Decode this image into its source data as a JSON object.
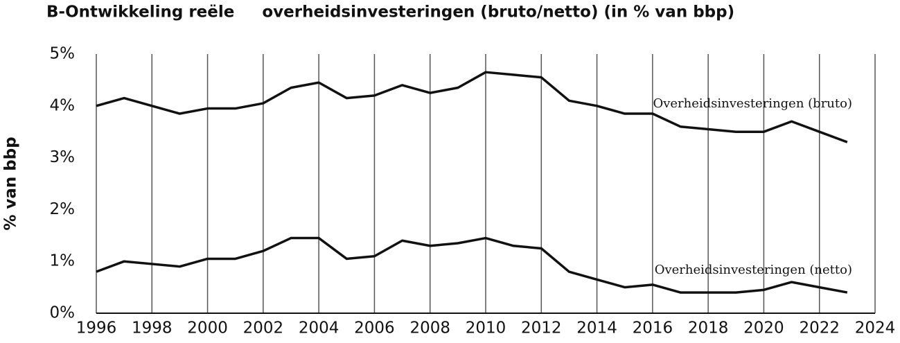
{
  "chart_data": {
    "type": "line",
    "title": "B-Ontwikkeling reële     overheidsinvesteringen (bruto/netto) (in % van bbp)",
    "y_label": "% van bbp",
    "x": [
      1996,
      1997,
      1998,
      1999,
      2000,
      2001,
      2002,
      2003,
      2004,
      2005,
      2006,
      2007,
      2008,
      2009,
      2010,
      2011,
      2012,
      2013,
      2014,
      2015,
      2016,
      2017,
      2018,
      2019,
      2020,
      2021,
      2022,
      2023
    ],
    "series": [
      {
        "name": "Overheidsinvesteringen (bruto)",
        "color": "#111111",
        "values": [
          4.0,
          4.15,
          4.0,
          3.85,
          3.95,
          3.95,
          4.05,
          4.35,
          4.45,
          4.15,
          4.2,
          4.4,
          4.25,
          4.35,
          4.65,
          4.6,
          4.55,
          4.1,
          4.0,
          3.85,
          3.85,
          3.6,
          3.55,
          3.5,
          3.5,
          3.7,
          3.5,
          3.3
        ]
      },
      {
        "name": "Overheidsinvesteringen (netto)",
        "color": "#111111",
        "values": [
          0.8,
          1.0,
          0.95,
          0.9,
          1.05,
          1.05,
          1.2,
          1.45,
          1.45,
          1.05,
          1.1,
          1.4,
          1.3,
          1.35,
          1.45,
          1.3,
          1.25,
          0.8,
          0.65,
          0.5,
          0.55,
          0.4,
          0.4,
          0.4,
          0.45,
          0.6,
          0.5,
          0.4
        ]
      }
    ],
    "xlim": [
      1996,
      2024
    ],
    "xticks": [
      1996,
      1998,
      2000,
      2002,
      2004,
      2006,
      2008,
      2010,
      2012,
      2014,
      2016,
      2018,
      2020,
      2022,
      2024
    ],
    "ylim": [
      0,
      5
    ],
    "yticks": [
      {
        "value": 0,
        "label": "0%"
      },
      {
        "value": 1,
        "label": "1%"
      },
      {
        "value": 2,
        "label": "2%"
      },
      {
        "value": 3,
        "label": "3%"
      },
      {
        "value": 4,
        "label": "4%"
      },
      {
        "value": 5,
        "label": "5%"
      }
    ],
    "grid": "x"
  }
}
